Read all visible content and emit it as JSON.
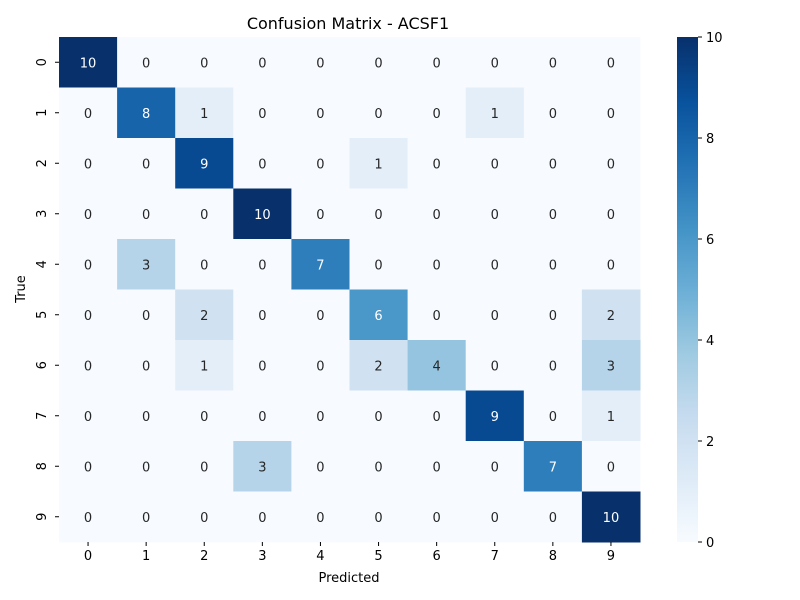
{
  "chart_data": {
    "type": "heatmap",
    "title": "Confusion Matrix - ACSF1",
    "xlabel": "Predicted",
    "ylabel": "True",
    "x_categories": [
      "0",
      "1",
      "2",
      "3",
      "4",
      "5",
      "6",
      "7",
      "8",
      "9"
    ],
    "y_categories": [
      "0",
      "1",
      "2",
      "3",
      "4",
      "5",
      "6",
      "7",
      "8",
      "9"
    ],
    "values": [
      [
        10,
        0,
        0,
        0,
        0,
        0,
        0,
        0,
        0,
        0
      ],
      [
        0,
        8,
        1,
        0,
        0,
        0,
        0,
        1,
        0,
        0
      ],
      [
        0,
        0,
        9,
        0,
        0,
        1,
        0,
        0,
        0,
        0
      ],
      [
        0,
        0,
        0,
        10,
        0,
        0,
        0,
        0,
        0,
        0
      ],
      [
        0,
        3,
        0,
        0,
        7,
        0,
        0,
        0,
        0,
        0
      ],
      [
        0,
        0,
        2,
        0,
        0,
        6,
        0,
        0,
        0,
        2
      ],
      [
        0,
        0,
        1,
        0,
        0,
        2,
        4,
        0,
        0,
        3
      ],
      [
        0,
        0,
        0,
        0,
        0,
        0,
        0,
        9,
        0,
        1
      ],
      [
        0,
        0,
        0,
        3,
        0,
        0,
        0,
        0,
        7,
        0
      ],
      [
        0,
        0,
        0,
        0,
        0,
        0,
        0,
        0,
        0,
        10
      ]
    ],
    "colorbar": {
      "min": 0,
      "max": 10,
      "ticks": [
        0,
        2,
        4,
        6,
        8,
        10
      ],
      "colormap": "Blues"
    }
  }
}
